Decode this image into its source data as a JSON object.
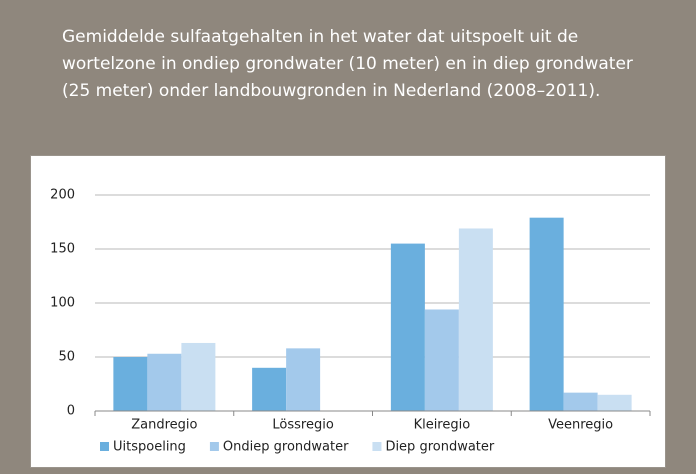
{
  "chart_data": {
    "type": "bar",
    "title": "Gemiddelde sulfaatgehalten in het water dat uitspoelt uit de wortelzone in ondiep grondwater (10 meter) en in diep grondwater (25 meter) onder landbouwgronden in Nederland (2008–2011).",
    "categories": [
      "Zandregio",
      "Lössregio",
      "Kleiregio",
      "Veenregio"
    ],
    "series": [
      {
        "name": "Uitspoeling",
        "color": "#6aafde",
        "values": [
          50,
          40,
          155,
          179
        ]
      },
      {
        "name": "Ondiep grondwater",
        "color": "#a3c9eb",
        "values": [
          53,
          58,
          94,
          17
        ]
      },
      {
        "name": "Diep grondwater",
        "color": "#c9dff2",
        "values": [
          63,
          null,
          169,
          15
        ]
      }
    ],
    "ylim": [
      0,
      200
    ],
    "yticks": [
      0,
      50,
      100,
      150,
      200
    ],
    "grid": true,
    "legend": "bottom"
  }
}
